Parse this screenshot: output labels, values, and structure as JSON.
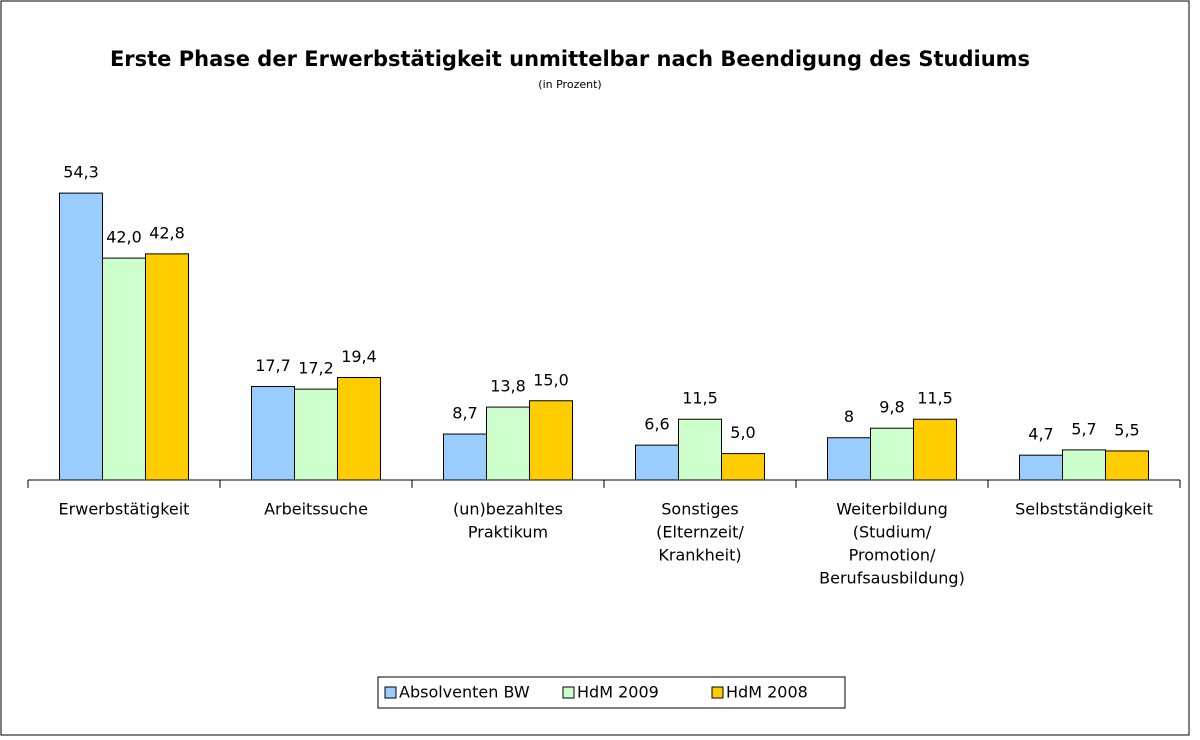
{
  "chart_data": {
    "type": "bar",
    "title": "Erste Phase der Erwerbstätigkeit unmittelbar nach Beendigung des Studiums",
    "subtitle": "(in Prozent)",
    "categories": [
      [
        "Erwerbstätigkeit"
      ],
      [
        "Arbeitssuche"
      ],
      [
        "(un)bezahltes",
        "Praktikum"
      ],
      [
        "Sonstiges",
        "(Elternzeit/",
        "Krankheit)"
      ],
      [
        "Weiterbildung",
        "(Studium/",
        "Promotion/",
        "Berufsausbildung)"
      ],
      [
        "Selbstständigkeit"
      ]
    ],
    "series": [
      {
        "name": "Absolventen BW",
        "color": "#99ccff",
        "values": [
          54.3,
          17.7,
          8.7,
          6.6,
          8,
          4.7
        ],
        "value_labels": [
          "54,3",
          "17,7",
          "8,7",
          "6,6",
          "8",
          "4,7"
        ]
      },
      {
        "name": "HdM 2009",
        "color": "#ccffcc",
        "values": [
          42.0,
          17.2,
          13.8,
          11.5,
          9.8,
          5.7
        ],
        "value_labels": [
          "42,0",
          "17,2",
          "13,8",
          "11,5",
          "9,8",
          "5,7"
        ]
      },
      {
        "name": "HdM 2008",
        "color": "#ffcc00",
        "values": [
          42.8,
          19.4,
          15.0,
          5.0,
          11.5,
          5.5
        ],
        "value_labels": [
          "42,8",
          "19,4",
          "15,0",
          "5,0",
          "11,5",
          "5,5"
        ]
      }
    ],
    "ylim": [
      0,
      60
    ],
    "grid": false,
    "legend": "bottom"
  }
}
